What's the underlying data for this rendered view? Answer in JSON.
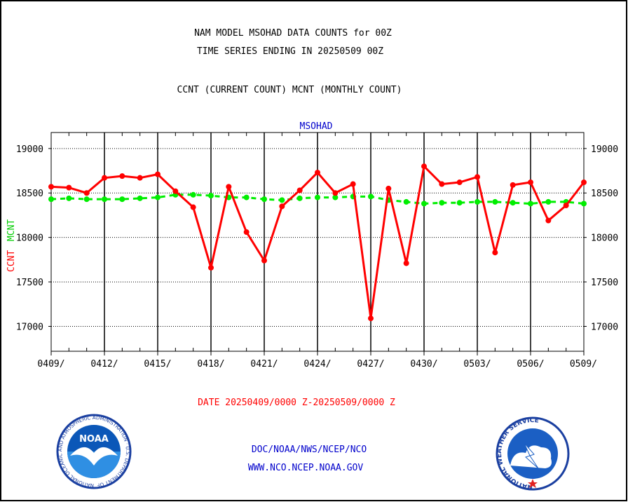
{
  "header": {
    "line1": "NAM MODEL MSOHAD DATA COUNTS for 00Z",
    "line2": "TIME SERIES ENDING IN 20250509 00Z",
    "line3": "CCNT (CURRENT COUNT) MCNT (MONTHLY COUNT)"
  },
  "footer": {
    "date_range": "DATE 20250409/0000 Z-20250509/0000 Z",
    "org_path": "DOC/NOAA/NWS/NCEP/NCO",
    "website": "WWW.NCO.NCEP.NOAA.GOV"
  },
  "logos": {
    "noaa_text": "NOAA",
    "noaa_ring": "NATIONAL OCEANIC AND ATMOSPHERIC ADMINISTRATION · U.S. DEPARTMENT OF COMMERCE ·",
    "nws_ring": "NATIONAL WEATHER SERVICE"
  },
  "colors": {
    "ccnt": "#ff0000",
    "mcnt": "#00ee00",
    "plot_title": "#0000cc",
    "footer_link": "#0000cc",
    "date_text": "#ff0000"
  },
  "chart_data": {
    "type": "line",
    "title": "MSOHAD",
    "ylabel_ccnt": "CCNT",
    "ylabel_mcnt": "MCNT",
    "ylim": [
      16720,
      19180
    ],
    "yticks": [
      17000,
      17500,
      18000,
      18500,
      19000
    ],
    "grid": true,
    "x_dates": [
      "0409",
      "0410",
      "0411",
      "0412",
      "0413",
      "0414",
      "0415",
      "0416",
      "0417",
      "0418",
      "0419",
      "0420",
      "0421",
      "0422",
      "0423",
      "0424",
      "0425",
      "0426",
      "0427",
      "0428",
      "0429",
      "0430",
      "0501",
      "0502",
      "0503",
      "0504",
      "0505",
      "0506",
      "0507",
      "0508",
      "0509"
    ],
    "xtick_labels": [
      "0409/",
      "0412/",
      "0415/",
      "0418/",
      "0421/",
      "0424/",
      "0427/",
      "0430/",
      "0503/",
      "0506/",
      "0509/"
    ],
    "series": [
      {
        "name": "CCNT",
        "color": "#ff0000",
        "style": "solid",
        "values": [
          18570,
          18560,
          18500,
          18670,
          18690,
          18670,
          18710,
          18520,
          18340,
          17660,
          18570,
          18060,
          17740,
          18350,
          18530,
          18730,
          18500,
          18600,
          17090,
          18550,
          17710,
          18800,
          18600,
          18620,
          18680,
          17830,
          18590,
          18620,
          18190,
          18360,
          18620
        ]
      },
      {
        "name": "MCNT",
        "color": "#00ee00",
        "style": "dashed",
        "values": [
          18430,
          18440,
          18430,
          18430,
          18430,
          18440,
          18450,
          18480,
          18480,
          18470,
          18450,
          18450,
          18430,
          18420,
          18440,
          18450,
          18450,
          18460,
          18460,
          18420,
          18400,
          18380,
          18390,
          18390,
          18400,
          18400,
          18390,
          18380,
          18400,
          18400,
          18380
        ]
      }
    ]
  }
}
